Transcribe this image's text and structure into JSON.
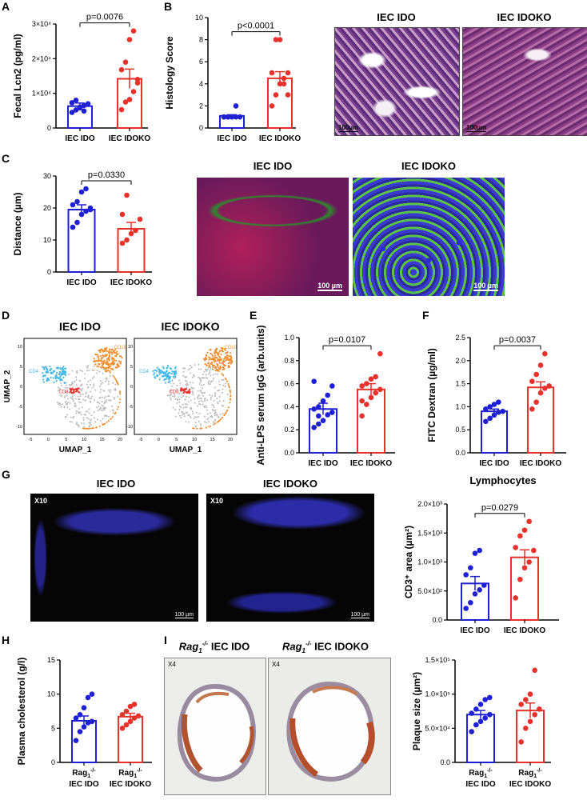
{
  "panel_letters": {
    "A": "A",
    "B": "B",
    "C": "C",
    "D": "D",
    "E": "E",
    "F": "F",
    "G": "G",
    "H": "H",
    "I": "I"
  },
  "colors": {
    "ido": "#1f1fd6",
    "idoko": "#e8312b"
  },
  "image_titles": {
    "b_left": "IEC IDO",
    "b_right": "IEC IDOKO",
    "c_left": "IEC IDO",
    "c_right": "IEC IDOKO",
    "d_left": "IEC IDO",
    "d_right": "IEC IDOKO",
    "g_left": "IEC IDO",
    "g_right": "IEC IDOKO",
    "i_left_prefix": "Rag",
    "i_left_sub": "1",
    "i_left_sup": "-/-",
    "i_left_suffix": " IEC IDO",
    "i_right_prefix": "Rag",
    "i_right_sub": "1",
    "i_right_sup": "-/-",
    "i_right_suffix": " IEC IDOKO"
  },
  "scale_bars": {
    "b_left": "100µm",
    "b_right": "100µm",
    "c_left": "100 µm",
    "c_right": "100 µm",
    "g_left": "100 µm",
    "g_right": "100 µm"
  },
  "magnifications": {
    "g_left": "X10",
    "g_right": "X10",
    "i_left": "X4",
    "i_right": "X4"
  },
  "umap": {
    "xlabel": "UMAP_1",
    "ylabel": "UMAP_2",
    "cd4": "CD4",
    "cd8": "CD8",
    "cd19": "CD19",
    "xticks": [
      "-5",
      "0",
      "5",
      "10",
      "15",
      "20"
    ],
    "yticks": [
      "10",
      "5",
      "0",
      "-5",
      "-10"
    ]
  },
  "chart_data": [
    {
      "id": "A",
      "type": "bar",
      "categories": [
        "IEC IDO",
        "IEC IDOKO"
      ],
      "ylabel": "Fecal Lcn2 (pg/ml)",
      "yticks": [
        "0",
        "1×10⁴",
        "2×10⁴",
        "3×10⁴"
      ],
      "ylim": [
        0,
        30000
      ],
      "pvalue": "p=0.0076",
      "series": [
        {
          "values": [
            6300,
            14200
          ],
          "sem": [
            900,
            2800
          ]
        }
      ],
      "points": [
        [
          4500,
          5200,
          6000,
          6500,
          7000,
          7300,
          8000,
          5800,
          4900
        ],
        [
          5300,
          7500,
          8200,
          10500,
          14000,
          16800,
          19000,
          25500,
          28000,
          13000
        ]
      ]
    },
    {
      "id": "B",
      "type": "bar",
      "categories": [
        "IEC IDO",
        "IEC IDOKO"
      ],
      "ylabel": "Histology Score",
      "yticks": [
        "0",
        "2",
        "4",
        "6",
        "8",
        "10"
      ],
      "ylim": [
        0,
        10
      ],
      "pvalue": "p<0.0001",
      "series": [
        {
          "values": [
            1.1,
            4.5
          ],
          "sem": [
            0.1,
            0.6
          ]
        }
      ],
      "points": [
        [
          1,
          1,
          1,
          1,
          1,
          1,
          1,
          1,
          2
        ],
        [
          2,
          3,
          4,
          4,
          5,
          5,
          8,
          8,
          4.5,
          3
        ]
      ]
    },
    {
      "id": "C",
      "type": "bar",
      "categories": [
        "IEC IDO",
        "IEC IDOKO"
      ],
      "ylabel": "Distance (µm)",
      "yticks": [
        "0",
        "10",
        "20",
        "30"
      ],
      "ylim": [
        0,
        30
      ],
      "pvalue": "p=0.0330",
      "series": [
        {
          "values": [
            19.5,
            13.5
          ],
          "sem": [
            1.5,
            2.0
          ]
        }
      ],
      "points": [
        [
          14,
          15.5,
          18,
          19,
          20,
          21,
          22,
          25,
          26,
          19.5
        ],
        [
          9,
          10,
          12,
          13,
          16.5,
          18,
          24
        ]
      ]
    },
    {
      "id": "E",
      "type": "bar",
      "categories": [
        "IEC IDO",
        "IEC IDOKO"
      ],
      "ylabel": "Anti-LPS serum IgG (arb.units)",
      "yticks": [
        "0.0",
        "0.2",
        "0.4",
        "0.6",
        "0.8",
        "1.0"
      ],
      "ylim": [
        0,
        1.0
      ],
      "pvalue": "p=0.0107",
      "series": [
        {
          "values": [
            0.38,
            0.55
          ],
          "sem": [
            0.05,
            0.05
          ]
        }
      ],
      "points": [
        [
          0.22,
          0.25,
          0.28,
          0.33,
          0.35,
          0.38,
          0.4,
          0.45,
          0.5,
          0.58,
          0.62,
          0.32
        ],
        [
          0.32,
          0.42,
          0.48,
          0.52,
          0.55,
          0.58,
          0.6,
          0.64,
          0.66,
          0.86,
          0.45
        ]
      ]
    },
    {
      "id": "F",
      "type": "bar",
      "categories": [
        "IEC IDO",
        "IEC IDOKO"
      ],
      "ylabel": "FITC Dextran (µg/ml)",
      "yticks": [
        "0.0",
        "0.5",
        "1.0",
        "1.5",
        "2.0",
        "2.5"
      ],
      "ylim": [
        0,
        2.5
      ],
      "pvalue": "p=0.0037",
      "series": [
        {
          "values": [
            0.9,
            1.42
          ],
          "sem": [
            0.05,
            0.12
          ]
        }
      ],
      "points": [
        [
          0.68,
          0.75,
          0.82,
          0.88,
          0.9,
          0.95,
          1.0,
          1.05,
          1.1
        ],
        [
          0.95,
          1.1,
          1.3,
          1.4,
          1.45,
          1.55,
          1.7,
          1.9,
          2.15
        ]
      ]
    },
    {
      "id": "G",
      "type": "bar",
      "title": "Lymphocytes",
      "categories": [
        "IEC IDO",
        "IEC IDOKO"
      ],
      "ylabel": "CD3⁺ area (µm²)",
      "yticks": [
        "0.0",
        "5.0×10²",
        "1.0×10³",
        "1.5×10³",
        "2.0×10³"
      ],
      "ylim": [
        0,
        2000
      ],
      "pvalue": "p=0.0279",
      "series": [
        {
          "values": [
            630,
            1080
          ],
          "sem": [
            120,
            130
          ]
        }
      ],
      "points": [
        [
          200,
          300,
          450,
          520,
          600,
          780,
          900,
          1150,
          1200
        ],
        [
          380,
          700,
          900,
          1000,
          1200,
          1250,
          1450,
          1550,
          1700
        ]
      ]
    },
    {
      "id": "H",
      "type": "bar",
      "categories": [
        "Rag1-/- IEC IDO",
        "Rag1-/- IEC IDOKO"
      ],
      "ylabel": "Plasma cholesterol (g/l)",
      "yticks": [
        "0",
        "5",
        "10",
        "15"
      ],
      "ylim": [
        0,
        15
      ],
      "pvalue": "",
      "series": [
        {
          "values": [
            6.1,
            6.7
          ],
          "sem": [
            0.7,
            0.5
          ]
        }
      ],
      "points": [
        [
          3.2,
          4.5,
          5.2,
          5.8,
          6.0,
          6.5,
          7.0,
          8.0,
          9.5,
          10.0
        ],
        [
          5,
          5.5,
          6,
          6.5,
          6.8,
          7,
          7.5,
          8.2,
          8.5
        ]
      ]
    },
    {
      "id": "I",
      "type": "bar",
      "categories": [
        "Rag1-/- IEC IDO",
        "Rag1-/- IEC IDOKO"
      ],
      "ylabel": "Plaque size (µm²)",
      "yticks": [
        "0.0",
        "5.0×10⁴",
        "1.0×10⁵",
        "1.5×10⁵"
      ],
      "ylim": [
        0,
        150000
      ],
      "pvalue": "",
      "series": [
        {
          "values": [
            70000,
            76000
          ],
          "sem": [
            6000,
            11000
          ]
        }
      ],
      "points": [
        [
          45000,
          55000,
          60000,
          65000,
          70000,
          72000,
          78000,
          85000,
          92000,
          95000
        ],
        [
          30000,
          50000,
          60000,
          70000,
          78000,
          85000,
          92000,
          100000,
          135000
        ]
      ]
    }
  ]
}
